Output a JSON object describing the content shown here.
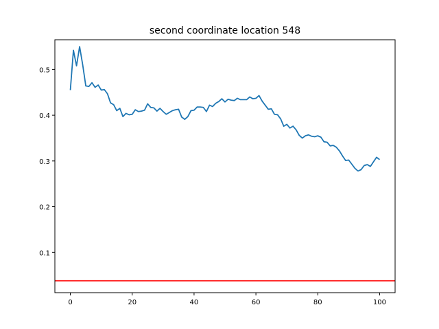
{
  "chart_data": {
    "type": "line",
    "title": "second coordinate location 548",
    "xlabel": "",
    "ylabel": "",
    "xlim": [
      -5,
      105
    ],
    "ylim": [
      0.012,
      0.565
    ],
    "x_ticks": [
      0,
      20,
      40,
      60,
      80,
      100
    ],
    "y_ticks": [
      0.1,
      0.2,
      0.3,
      0.4,
      0.5
    ],
    "x_tick_labels": [
      "0",
      "20",
      "40",
      "60",
      "80",
      "100"
    ],
    "y_tick_labels": [
      "0.1",
      "0.2",
      "0.3",
      "0.4",
      "0.5"
    ],
    "grid": false,
    "series": [
      {
        "color": "#1f77b4",
        "x": [
          0,
          1,
          2,
          3,
          4,
          5,
          6,
          7,
          8,
          9,
          10,
          11,
          12,
          13,
          14,
          15,
          16,
          17,
          18,
          19,
          20,
          21,
          22,
          23,
          24,
          25,
          26,
          27,
          28,
          29,
          30,
          31,
          32,
          33,
          34,
          35,
          36,
          37,
          38,
          39,
          40,
          41,
          42,
          43,
          44,
          45,
          46,
          47,
          48,
          49,
          50,
          51,
          52,
          53,
          54,
          55,
          56,
          57,
          58,
          59,
          60,
          61,
          62,
          63,
          64,
          65,
          66,
          67,
          68,
          69,
          70,
          71,
          72,
          73,
          74,
          75,
          76,
          77,
          78,
          79,
          80,
          81,
          82,
          83,
          84,
          85,
          86,
          87,
          88,
          89,
          90,
          91,
          92,
          93,
          94,
          95,
          96,
          97,
          98,
          99,
          100
        ],
        "values": [
          0.455,
          0.542,
          0.508,
          0.55,
          0.51,
          0.464,
          0.463,
          0.471,
          0.461,
          0.466,
          0.455,
          0.456,
          0.447,
          0.427,
          0.423,
          0.41,
          0.415,
          0.397,
          0.404,
          0.401,
          0.402,
          0.412,
          0.408,
          0.409,
          0.411,
          0.425,
          0.417,
          0.416,
          0.409,
          0.415,
          0.408,
          0.402,
          0.406,
          0.41,
          0.412,
          0.413,
          0.396,
          0.391,
          0.397,
          0.41,
          0.411,
          0.418,
          0.418,
          0.417,
          0.408,
          0.422,
          0.419,
          0.426,
          0.43,
          0.436,
          0.429,
          0.435,
          0.433,
          0.432,
          0.437,
          0.434,
          0.434,
          0.434,
          0.44,
          0.436,
          0.437,
          0.443,
          0.431,
          0.422,
          0.413,
          0.414,
          0.402,
          0.401,
          0.392,
          0.376,
          0.38,
          0.372,
          0.376,
          0.368,
          0.356,
          0.35,
          0.355,
          0.357,
          0.354,
          0.353,
          0.355,
          0.352,
          0.342,
          0.341,
          0.333,
          0.334,
          0.33,
          0.322,
          0.311,
          0.301,
          0.302,
          0.293,
          0.284,
          0.278,
          0.281,
          0.29,
          0.292,
          0.288,
          0.298,
          0.308,
          0.303
        ]
      }
    ],
    "reference_line": {
      "y": 0.038,
      "color": "#ff0000"
    }
  }
}
